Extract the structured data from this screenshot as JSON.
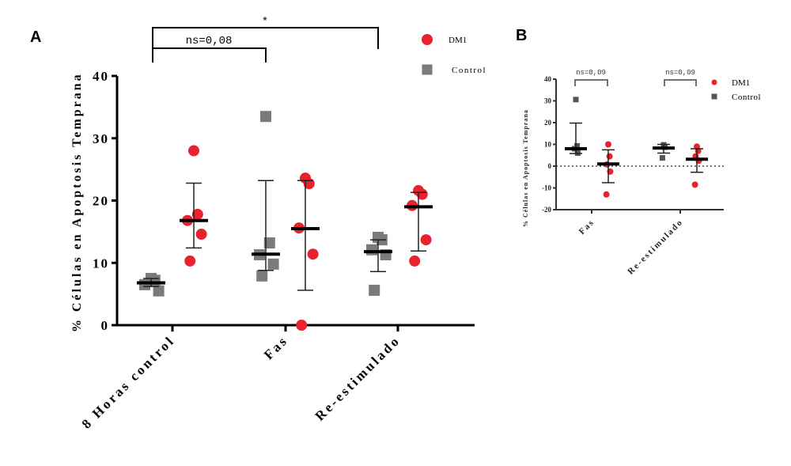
{
  "colors": {
    "dm1": "#e8232f",
    "control": "#7a7a7a",
    "control_b": "#555555",
    "axis": "#000000"
  },
  "chart_data": [
    {
      "panel": "A",
      "type": "scatter",
      "title": "",
      "xlabel": "",
      "ylabel": "% Células en Apoptosis Temprana",
      "ylim": [
        0,
        40
      ],
      "yticks": [
        0,
        10,
        20,
        30,
        40
      ],
      "ytick_labels": [
        "0",
        "10",
        "20",
        "30",
        "40"
      ],
      "categories": [
        "8 Horas control",
        "Fas",
        "Re-estimulado"
      ],
      "legend": {
        "position": "top-right",
        "entries": [
          {
            "label": "DM1",
            "marker": "circle"
          },
          {
            "label": "Control",
            "marker": "square"
          }
        ]
      },
      "series": [
        {
          "name": "Control",
          "marker": "square",
          "groups": [
            {
              "category": "8 Horas control",
              "points": [
                7.5,
                7.2,
                6.5,
                5.5
              ],
              "mean": 6.8,
              "err_low": 6.2,
              "err_high": 7.5
            },
            {
              "category": "Fas",
              "points": [
                33.5,
                13.2,
                11.3,
                9.8,
                7.9
              ],
              "mean": 11.4,
              "err_low": 8.8,
              "err_high": 23.2
            },
            {
              "category": "Re-estimulado",
              "points": [
                14.1,
                13.7,
                12.1,
                11.3,
                5.6
              ],
              "mean": 11.8,
              "err_low": 8.6,
              "err_high": 13.7
            }
          ]
        },
        {
          "name": "DM1",
          "marker": "circle",
          "groups": [
            {
              "category": "8 Horas control",
              "points": [
                28.0,
                17.8,
                16.8,
                14.6,
                10.3
              ],
              "mean": 16.8,
              "err_low": 12.4,
              "err_high": 22.8
            },
            {
              "category": "Fas",
              "points": [
                23.6,
                22.7,
                15.6,
                11.4,
                0.0
              ],
              "mean": 15.5,
              "err_low": 5.6,
              "err_high": 23.2
            },
            {
              "category": "Re-estimulado",
              "points": [
                21.6,
                21.0,
                19.2,
                13.7,
                10.3
              ],
              "mean": 19.0,
              "err_low": 11.9,
              "err_high": 21.3
            }
          ]
        }
      ],
      "annotations": [
        {
          "text": "ns=0,08",
          "from": "8 Horas control",
          "to": "Fas"
        },
        {
          "text": "*",
          "from": "8 Horas control",
          "to": "Re-estimulado"
        }
      ]
    },
    {
      "panel": "B",
      "type": "scatter",
      "title": "",
      "xlabel": "",
      "ylabel": "% Células en Apoptosis Temprana",
      "ylim": [
        -20,
        40
      ],
      "yticks": [
        -20,
        -10,
        0,
        10,
        20,
        30,
        40
      ],
      "ytick_labels": [
        "-20",
        "-10",
        "0",
        "10",
        "20",
        "30",
        "40"
      ],
      "reference_line": {
        "y": 0,
        "style": "dotted"
      },
      "categories": [
        "Fas",
        "Re-estimulado"
      ],
      "legend": {
        "position": "top-right",
        "entries": [
          {
            "label": "DM1",
            "marker": "circle"
          },
          {
            "label": "Control",
            "marker": "square"
          }
        ]
      },
      "series": [
        {
          "name": "Control",
          "marker": "square",
          "groups": [
            {
              "category": "Fas",
              "points": [
                30.6,
                9.3,
                8.0,
                6.0
              ],
              "mean": 8.0,
              "err_low": 5.8,
              "err_high": 19.8
            },
            {
              "category": "Re-estimulado",
              "points": [
                9.8,
                8.7,
                3.8
              ],
              "mean": 8.3,
              "err_low": 6.0,
              "err_high": 10.0
            }
          ]
        },
        {
          "name": "DM1",
          "marker": "circle",
          "groups": [
            {
              "category": "Fas",
              "points": [
                10.0,
                4.5,
                0.8,
                -2.5,
                -13.0
              ],
              "mean": 1.0,
              "err_low": -7.6,
              "err_high": 7.5
            },
            {
              "category": "Re-estimulado",
              "points": [
                9.0,
                7.0,
                4.5,
                2.5,
                -8.5
              ],
              "mean": 3.2,
              "err_low": -2.8,
              "err_high": 8.0
            }
          ]
        }
      ],
      "annotations": [
        {
          "text": "ns=0,09",
          "category": "Fas"
        },
        {
          "text": "ns=0,09",
          "category": "Re-estimulado"
        }
      ]
    }
  ]
}
